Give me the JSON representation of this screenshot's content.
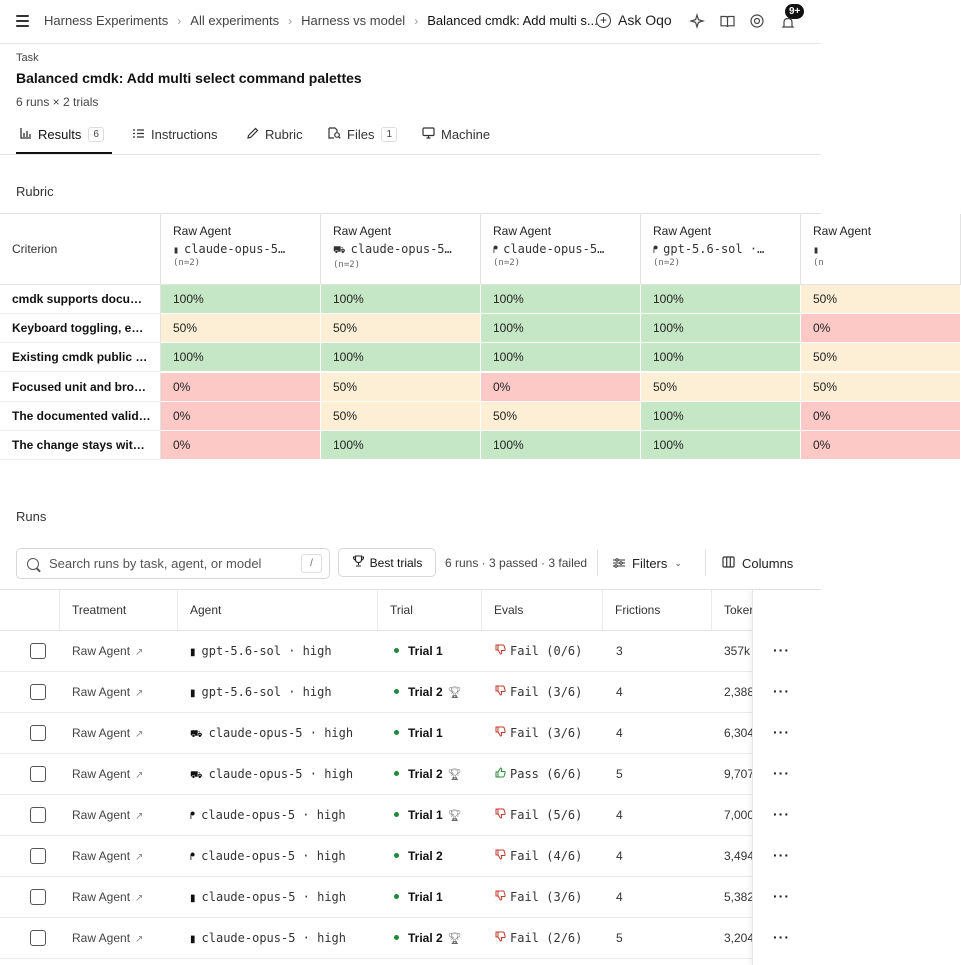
{
  "topbar": {
    "breadcrumbs": [
      "Harness Experiments",
      "All experiments",
      "Harness vs model",
      "Balanced cmdk: Add multi s..."
    ],
    "ask_label": "Ask Oqo",
    "notification_badge": "9+"
  },
  "header": {
    "task_label": "Task",
    "title": "Balanced cmdk: Add multi select command palettes",
    "subtitle": "6 runs × 2 trials"
  },
  "tabs": [
    {
      "label": "Results",
      "count": "6",
      "icon": "bar-chart-icon"
    },
    {
      "label": "Instructions",
      "count": "",
      "icon": "list-icon"
    },
    {
      "label": "Rubric",
      "count": "",
      "icon": "pencil-icon"
    },
    {
      "label": "Files",
      "count": "1",
      "icon": "file-search-icon"
    },
    {
      "label": "Machine",
      "count": "",
      "icon": "monitor-icon"
    }
  ],
  "rubric": {
    "section_title": "Rubric",
    "criterion_header": "Criterion",
    "columns": [
      {
        "label": "Raw Agent",
        "icon": "▮",
        "model": "claude-opus-5…",
        "n": "(n=2)"
      },
      {
        "label": "Raw Agent",
        "icon": "⛟",
        "model": "claude-opus-5…",
        "n": "(n=2)"
      },
      {
        "label": "Raw Agent",
        "icon": "ᖰ",
        "model": "claude-opus-5…",
        "n": "(n=2)"
      },
      {
        "label": "Raw Agent",
        "icon": "ᖰ",
        "model": "gpt-5.6-sol ·…",
        "n": "(n=2)"
      },
      {
        "label": "Raw Agent",
        "icon": "▮",
        "model": "",
        "n": "(n"
      }
    ],
    "rows": [
      {
        "criterion": "cmdk supports docu…",
        "values": [
          "100%",
          "100%",
          "100%",
          "100%",
          "50%"
        ]
      },
      {
        "criterion": "Keyboard toggling, e…",
        "values": [
          "50%",
          "50%",
          "100%",
          "100%",
          "0%"
        ]
      },
      {
        "criterion": "Existing cmdk public …",
        "values": [
          "100%",
          "100%",
          "100%",
          "100%",
          "50%"
        ]
      },
      {
        "criterion": "Focused unit and bro…",
        "values": [
          "0%",
          "50%",
          "0%",
          "50%",
          "50%"
        ]
      },
      {
        "criterion": "The documented valid…",
        "values": [
          "0%",
          "50%",
          "50%",
          "100%",
          "0%"
        ]
      },
      {
        "criterion": "The change stays wit…",
        "values": [
          "0%",
          "100%",
          "100%",
          "100%",
          "0%"
        ]
      }
    ],
    "colors": {
      "high": "#c6e7c6",
      "mid": "#fdefd6",
      "low": "#fcc9c7"
    }
  },
  "runs": {
    "section_title": "Runs",
    "search_placeholder": "Search runs by task, agent, or model",
    "search_shortcut": "/",
    "best_trials_label": "Best trials",
    "summary": "6 runs · 3 passed · 3 failed",
    "filters_label": "Filters",
    "columns_label": "Columns",
    "headers": [
      "Treatment",
      "Agent",
      "Trial",
      "Evals",
      "Frictions",
      "Toker"
    ],
    "rows": [
      {
        "treatment": "Raw Agent",
        "agent_icon": "▮",
        "agent": "gpt-5.6-sol · high",
        "trial": "Trial 1",
        "best": false,
        "eval_status": "fail",
        "eval_label": "Fail",
        "eval_score": "(0/6)",
        "frictions": "3",
        "tokens": "357k"
      },
      {
        "treatment": "Raw Agent",
        "agent_icon": "▮",
        "agent": "gpt-5.6-sol · high",
        "trial": "Trial 2",
        "best": true,
        "eval_status": "fail",
        "eval_label": "Fail",
        "eval_score": "(3/6)",
        "frictions": "4",
        "tokens": "2,388"
      },
      {
        "treatment": "Raw Agent",
        "agent_icon": "⛟",
        "agent": "claude-opus-5 · high",
        "trial": "Trial 1",
        "best": false,
        "eval_status": "fail",
        "eval_label": "Fail",
        "eval_score": "(3/6)",
        "frictions": "4",
        "tokens": "6,304"
      },
      {
        "treatment": "Raw Agent",
        "agent_icon": "⛟",
        "agent": "claude-opus-5 · high",
        "trial": "Trial 2",
        "best": true,
        "eval_status": "pass",
        "eval_label": "Pass",
        "eval_score": "(6/6)",
        "frictions": "5",
        "tokens": "9,707"
      },
      {
        "treatment": "Raw Agent",
        "agent_icon": "ᖰ",
        "agent": "claude-opus-5 · high",
        "trial": "Trial 1",
        "best": true,
        "eval_status": "fail",
        "eval_label": "Fail",
        "eval_score": "(5/6)",
        "frictions": "4",
        "tokens": "7,000"
      },
      {
        "treatment": "Raw Agent",
        "agent_icon": "ᖰ",
        "agent": "claude-opus-5 · high",
        "trial": "Trial 2",
        "best": false,
        "eval_status": "fail",
        "eval_label": "Fail",
        "eval_score": "(4/6)",
        "frictions": "4",
        "tokens": "3,494"
      },
      {
        "treatment": "Raw Agent",
        "agent_icon": "▮",
        "agent": "claude-opus-5 · high",
        "trial": "Trial 1",
        "best": false,
        "eval_status": "fail",
        "eval_label": "Fail",
        "eval_score": "(3/6)",
        "frictions": "4",
        "tokens": "5,382"
      },
      {
        "treatment": "Raw Agent",
        "agent_icon": "▮",
        "agent": "claude-opus-5 · high",
        "trial": "Trial 2",
        "best": true,
        "eval_status": "fail",
        "eval_label": "Fail",
        "eval_score": "(2/6)",
        "frictions": "5",
        "tokens": "3,204"
      }
    ],
    "more_glyph": "···"
  }
}
